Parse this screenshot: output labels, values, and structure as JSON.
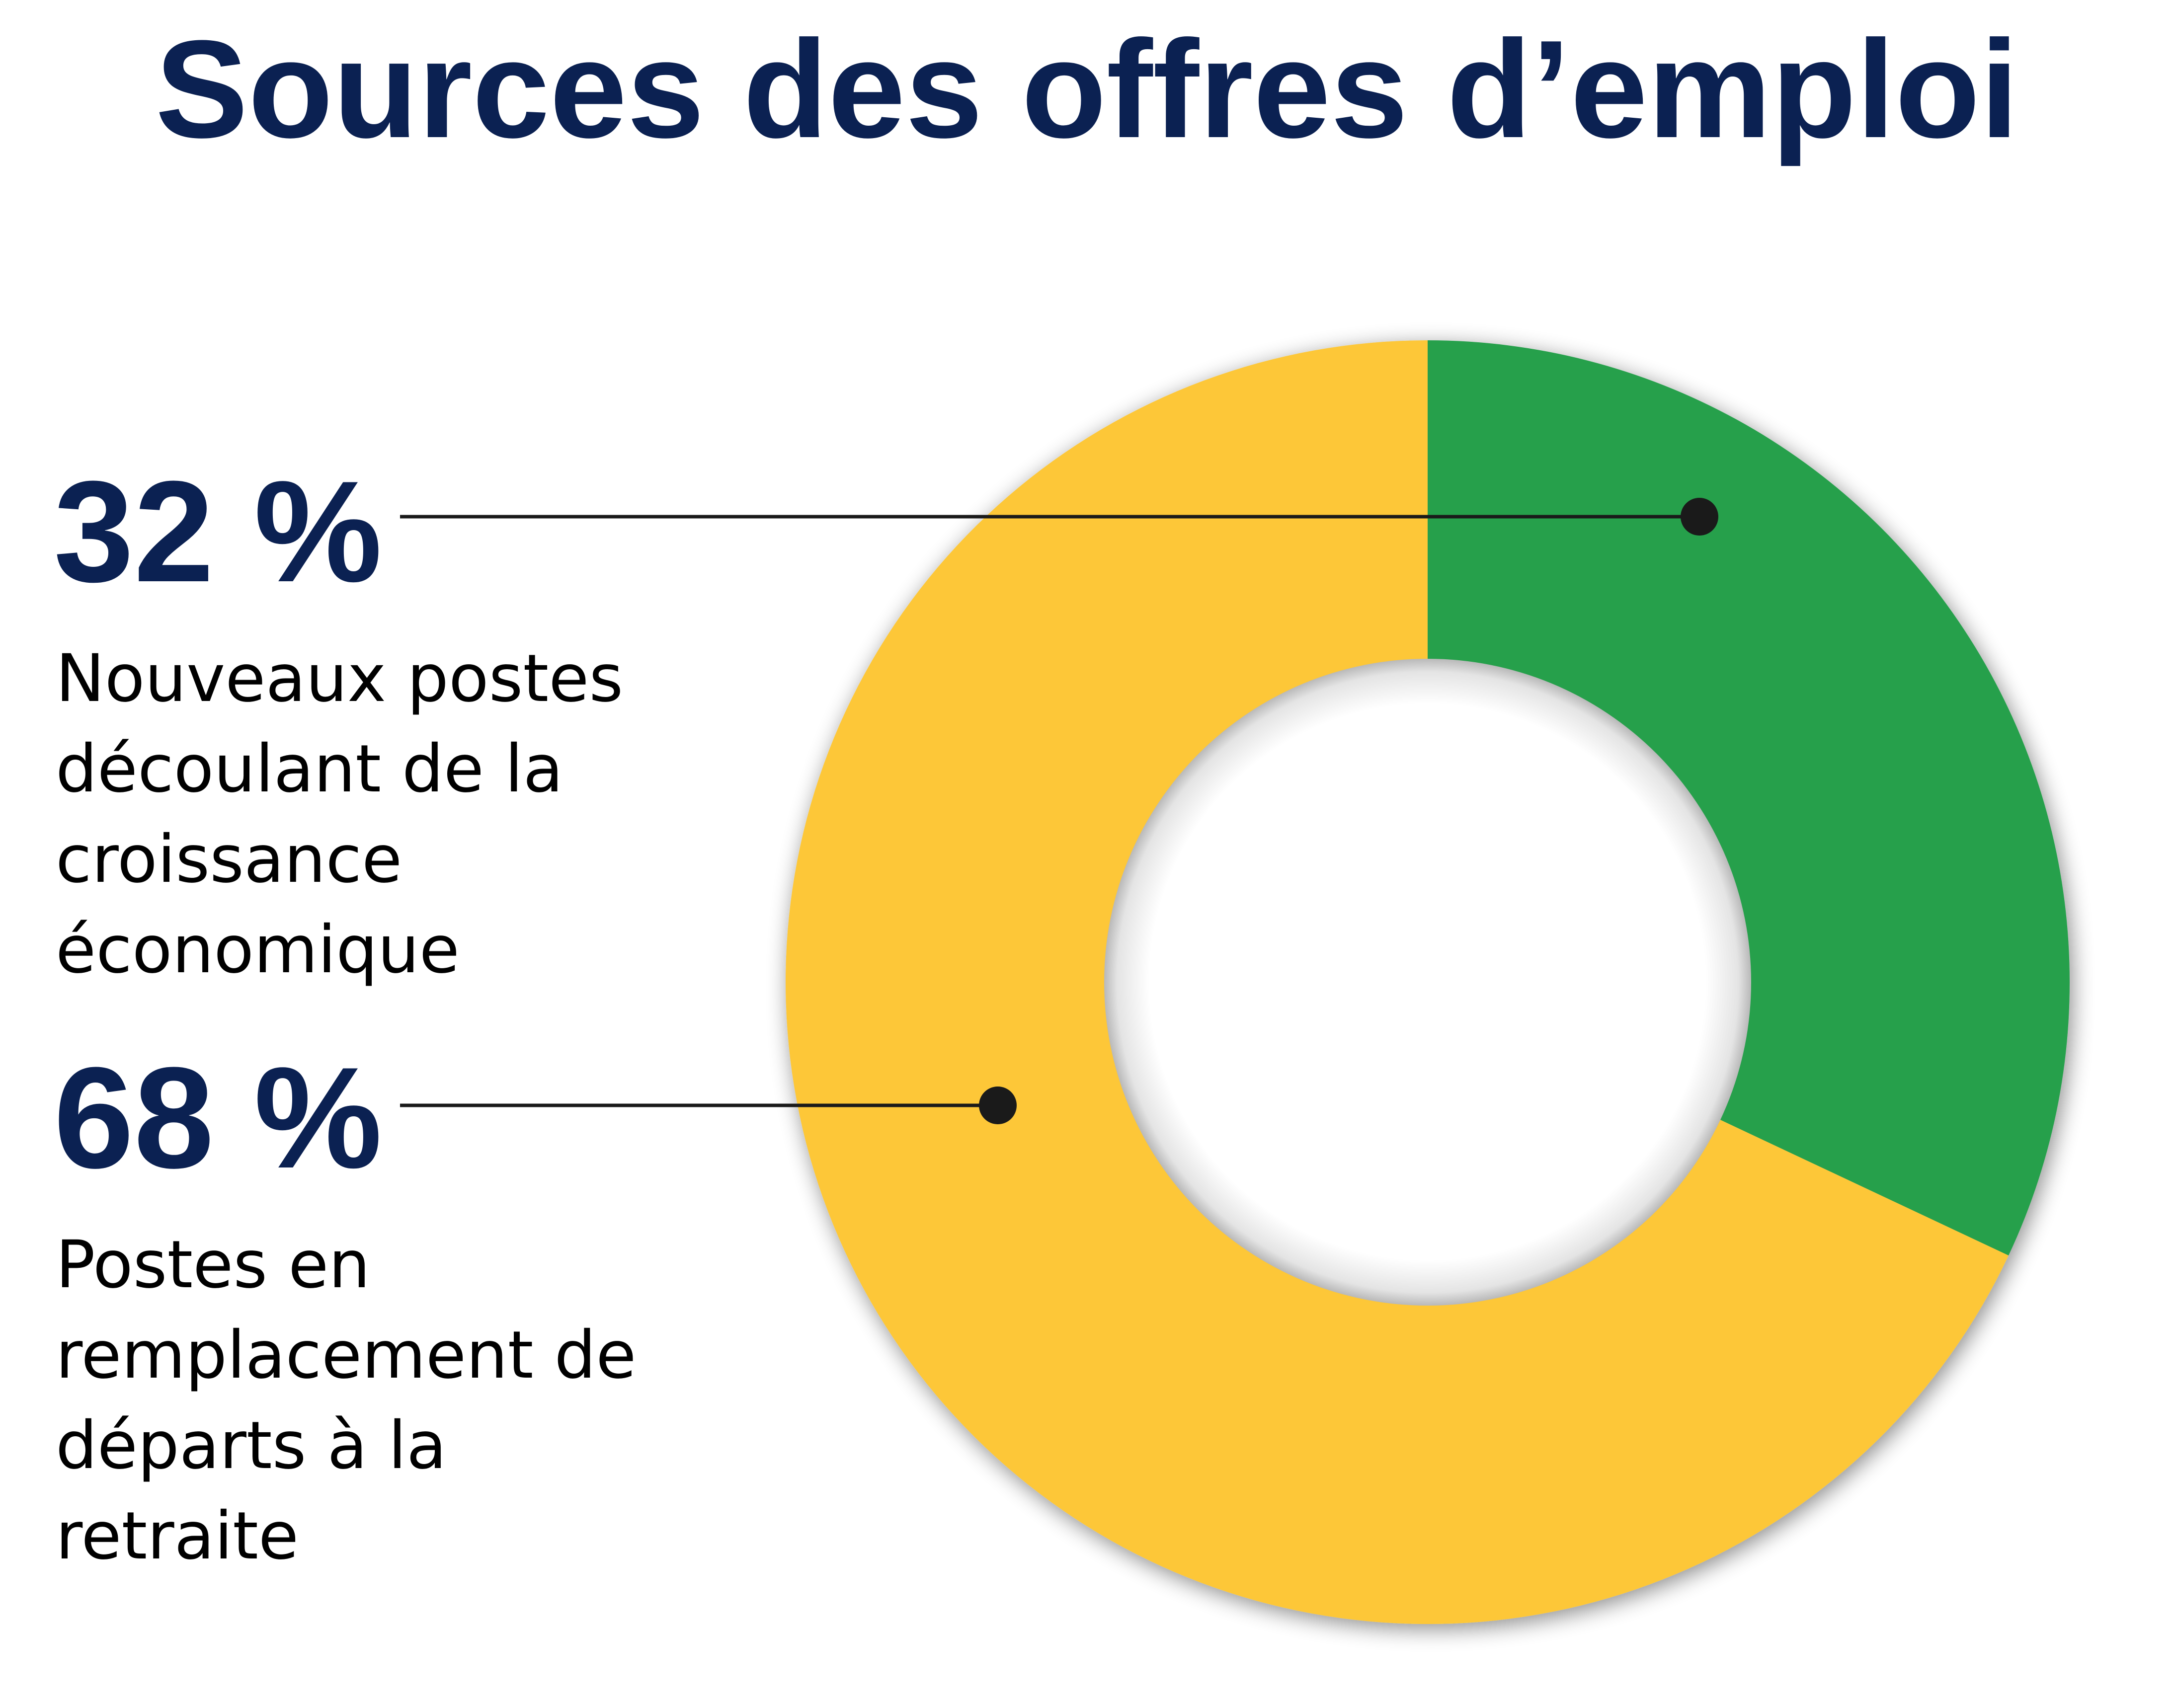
{
  "chart_data": {
    "type": "pie",
    "title": "Sources des offres d’emploi",
    "categories": [
      "Nouveaux postes découlant de la croissance économique",
      "Postes en remplacement de départs à la retraite"
    ],
    "values": [
      32,
      68
    ],
    "value_labels": [
      "32 %",
      "68 %"
    ],
    "colors": [
      "#25a04b",
      "#fdc738"
    ],
    "hole": true
  },
  "colors": {
    "title": "#0b2152",
    "leader": "#1a1a1a"
  }
}
